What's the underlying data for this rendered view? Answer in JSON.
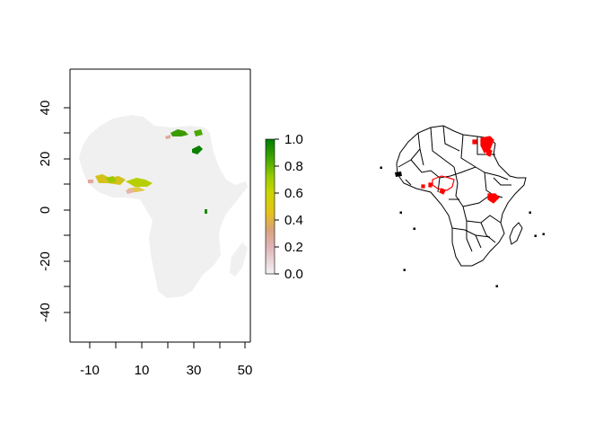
{
  "left_map": {
    "x_ticks": [
      "-10",
      "10",
      "30",
      "50"
    ],
    "y_ticks": [
      "40",
      "20",
      "0",
      "-20",
      "-40"
    ],
    "legend": {
      "tick_labels": [
        "1.0",
        "0.8",
        "0.6",
        "0.4",
        "0.2",
        "0.0"
      ],
      "range": [
        0,
        1
      ],
      "colors_low_to_high": [
        "#f2f2f2",
        "#e0b4b8",
        "#d9a27a",
        "#e6c21a",
        "#cdd500",
        "#99cc00",
        "#47a800",
        "#007d00"
      ]
    },
    "land_color": "#f0f0f0"
  },
  "right_map": {
    "borders_color": "#000000",
    "highlight_color": "#ff0000"
  },
  "chart_data": {
    "type": "heatmap",
    "xlim": [
      -17,
      52
    ],
    "ylim": [
      -52,
      55
    ],
    "x_ticks": [
      -10,
      10,
      30,
      50
    ],
    "y_ticks": [
      40,
      20,
      0,
      -20,
      -40
    ],
    "colorbar": {
      "min": 0,
      "max": 1,
      "ticks": [
        0.0,
        0.2,
        0.4,
        0.6,
        0.8,
        1.0
      ]
    },
    "grid": false
  }
}
